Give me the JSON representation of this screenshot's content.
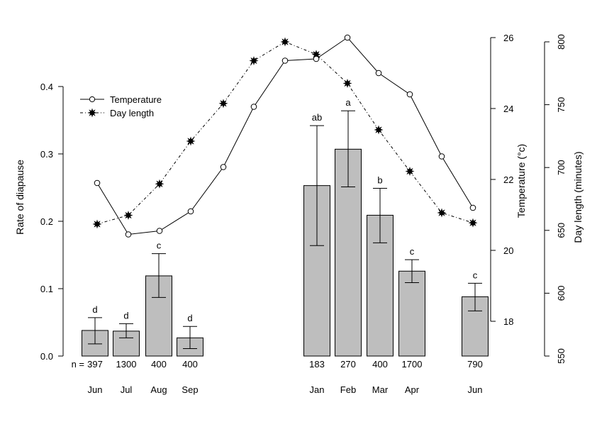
{
  "chart_data": {
    "type": "bar",
    "ylabel": "Rate of diapause",
    "ylim": [
      0,
      0.47
    ],
    "y_ticks": [
      "0.0",
      "0.1",
      "0.2",
      "0.3",
      "0.4"
    ],
    "y_tick_values": [
      0,
      0.1,
      0.2,
      0.3,
      0.4
    ],
    "bars": [
      {
        "month": "Jun",
        "value": 0.038,
        "err_low": 0.018,
        "err_high": 0.057,
        "letter": "d",
        "n": "397"
      },
      {
        "month": "Jul",
        "value": 0.037,
        "err_low": 0.027,
        "err_high": 0.048,
        "letter": "d",
        "n": "1300"
      },
      {
        "month": "Aug",
        "value": 0.119,
        "err_low": 0.087,
        "err_high": 0.152,
        "letter": "c",
        "n": "400"
      },
      {
        "month": "Sep",
        "value": 0.027,
        "err_low": 0.011,
        "err_high": 0.044,
        "letter": "d",
        "n": "400"
      },
      {
        "month": "Jan",
        "value": 0.253,
        "err_low": 0.164,
        "err_high": 0.342,
        "letter": "ab",
        "n": "183"
      },
      {
        "month": "Feb",
        "value": 0.307,
        "err_low": 0.251,
        "err_high": 0.364,
        "letter": "a",
        "n": "270"
      },
      {
        "month": "Mar",
        "value": 0.209,
        "err_low": 0.168,
        "err_high": 0.249,
        "letter": "b",
        "n": "400"
      },
      {
        "month": "Apr",
        "value": 0.126,
        "err_low": 0.109,
        "err_high": 0.143,
        "letter": "c",
        "n": "1700"
      },
      {
        "month": "Jun",
        "value": 0.088,
        "err_low": 0.067,
        "err_high": 0.108,
        "letter": "c",
        "n": "790"
      }
    ],
    "n_prefix": "n =",
    "series": [
      {
        "name": "Temperature",
        "axis": "right1",
        "marker": "open-circle",
        "line": "solid",
        "values": [
          21.9,
          20.45,
          20.55,
          21.1,
          22.35,
          24.05,
          25.35,
          25.4,
          26.0,
          25.0,
          24.4,
          22.65,
          21.2
        ]
      },
      {
        "name": "Day length",
        "axis": "right2",
        "marker": "star",
        "line": "dotdash",
        "values": [
          655,
          662,
          687,
          721,
          751,
          785,
          800,
          790,
          767,
          730,
          697,
          664,
          656
        ]
      }
    ],
    "legend": {
      "placement": "top-left",
      "entries": [
        "Temperature",
        "Day length"
      ]
    },
    "right_axis_1": {
      "label": "Temperature (°c)",
      "ticks": [
        "18",
        "20",
        "22",
        "24",
        "26"
      ],
      "tick_values": [
        18,
        20,
        22,
        24,
        26
      ],
      "range": [
        17,
        26.3
      ]
    },
    "right_axis_2": {
      "label": "Day length (minutes)",
      "ticks": [
        "550",
        "600",
        "650",
        "700",
        "750",
        "800"
      ],
      "tick_values": [
        550,
        600,
        650,
        700,
        750,
        800
      ],
      "range": [
        550,
        800
      ]
    }
  }
}
